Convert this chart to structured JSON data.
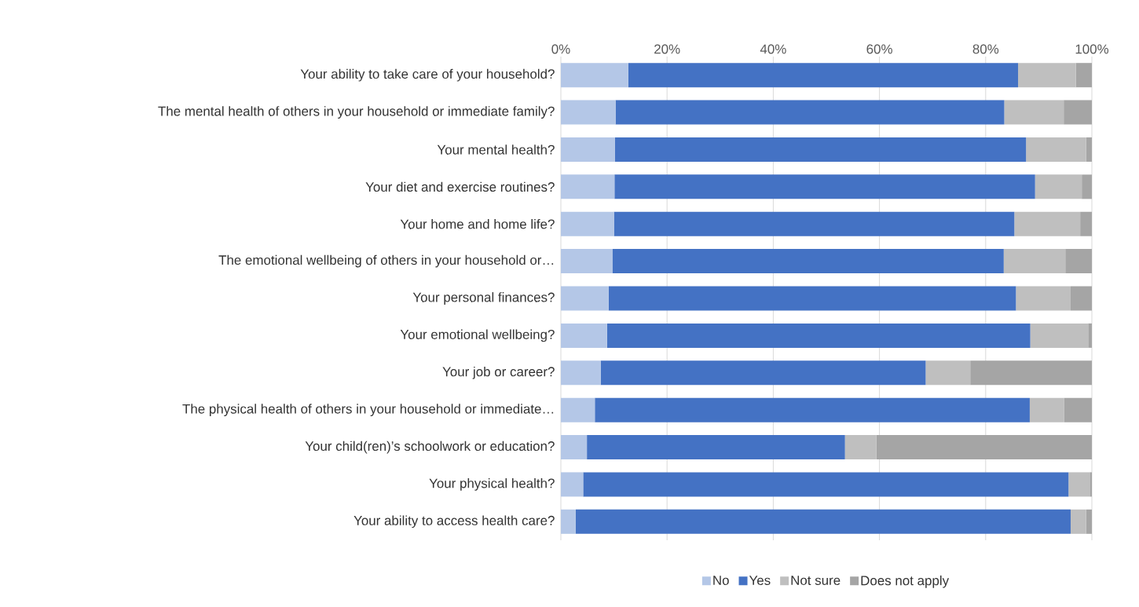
{
  "chart_data": {
    "type": "bar",
    "orientation": "horizontal",
    "stacked": true,
    "categories": [
      "Your ability to take care of your household?",
      "The mental health of others in your household or immediate family?",
      "Your mental health?",
      "Your diet and exercise routines?",
      "Your home and home life?",
      "The emotional wellbeing of others in your household or…",
      "Your personal finances?",
      "Your emotional wellbeing?",
      "Your job or career?",
      "The physical health of others in your household or immediate…",
      "Your child(ren)’s schoolwork or education?",
      "Your physical health?",
      "Your ability to access health care?"
    ],
    "series": [
      {
        "name": "No",
        "color": "#b4c7e7",
        "values": [
          12.7,
          10.3,
          10.2,
          10.1,
          10.0,
          9.7,
          9.0,
          8.7,
          7.5,
          6.4,
          4.9,
          4.2,
          2.8
        ]
      },
      {
        "name": "Yes",
        "color": "#4472c4",
        "values": [
          73.4,
          73.2,
          77.4,
          79.2,
          75.4,
          73.7,
          76.7,
          79.7,
          61.2,
          81.9,
          48.6,
          91.4,
          93.2
        ]
      },
      {
        "name": "Not sure",
        "color": "#bfbfbf",
        "values": [
          10.9,
          11.2,
          11.3,
          8.8,
          12.4,
          11.6,
          10.3,
          10.9,
          8.4,
          6.5,
          5.9,
          4.0,
          2.9
        ]
      },
      {
        "name": "Does not apply",
        "color": "#a5a5a5",
        "values": [
          3.0,
          5.3,
          1.1,
          1.9,
          2.2,
          5.0,
          4.0,
          0.7,
          22.9,
          5.2,
          40.6,
          0.4,
          1.1
        ]
      }
    ],
    "xlim": [
      0,
      100
    ],
    "xticks": [
      {
        "value": 0,
        "label": "0%"
      },
      {
        "value": 20,
        "label": "20%"
      },
      {
        "value": 40,
        "label": "40%"
      },
      {
        "value": 60,
        "label": "60%"
      },
      {
        "value": 80,
        "label": "80%"
      },
      {
        "value": 100,
        "label": "100%"
      }
    ],
    "grid": "x",
    "legend": "bottom"
  }
}
